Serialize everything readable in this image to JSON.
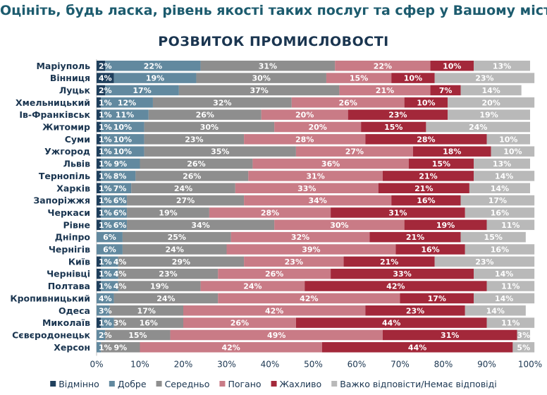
{
  "chart_data": {
    "type": "bar",
    "orientation": "horizontal",
    "stacked": true,
    "title": "Оцініть, будь ласка, рівень якості таких послуг та сфер у Вашому місті",
    "subtitle": "РОЗВИТОК ПРОМИСЛОВОСТІ",
    "xlabel": "",
    "ylabel": "",
    "xlim": [
      0,
      100
    ],
    "x_ticks": [
      "0%",
      "10%",
      "20%",
      "30%",
      "40%",
      "50%",
      "60%",
      "70%",
      "80%",
      "90%",
      "100%"
    ],
    "legend_position": "bottom",
    "categories": [
      "Маріуполь",
      "Вінниця",
      "Луцьк",
      "Хмельницький",
      "Ів-Франківськ",
      "Житомир",
      "Суми",
      "Ужгород",
      "Львів",
      "Тернопіль",
      "Харків",
      "Запоріжжя",
      "Черкаси",
      "Рівне",
      "Дніпро",
      "Чернігів",
      "Київ",
      "Чернівці",
      "Полтава",
      "Кропивницький",
      "Одеса",
      "Миколаїв",
      "Сєвєродонецьк",
      "Херсон"
    ],
    "series": [
      {
        "name": "Відмінно",
        "color": "#1f3f5c",
        "values": [
          2,
          4,
          2,
          1,
          1,
          1,
          1,
          1,
          1,
          1,
          1,
          1,
          1,
          1,
          0,
          0,
          1,
          1,
          1,
          0,
          0,
          1,
          0,
          0
        ]
      },
      {
        "name": "Добре",
        "color": "#62899f",
        "values": [
          22,
          19,
          17,
          12,
          11,
          10,
          10,
          10,
          9,
          8,
          7,
          6,
          6,
          6,
          6,
          6,
          4,
          4,
          4,
          4,
          3,
          3,
          2,
          1
        ]
      },
      {
        "name": "Середньо",
        "color": "#8e8e8e",
        "values": [
          31,
          30,
          37,
          32,
          26,
          30,
          23,
          35,
          26,
          26,
          24,
          27,
          19,
          34,
          25,
          24,
          29,
          23,
          19,
          24,
          17,
          16,
          15,
          9
        ]
      },
      {
        "name": "Погано",
        "color": "#c97b86",
        "values": [
          22,
          15,
          21,
          26,
          20,
          20,
          28,
          27,
          36,
          31,
          33,
          34,
          28,
          30,
          32,
          39,
          23,
          26,
          24,
          42,
          42,
          26,
          49,
          42
        ]
      },
      {
        "name": "Жахливо",
        "color": "#a3283a",
        "values": [
          10,
          10,
          7,
          10,
          23,
          15,
          28,
          18,
          15,
          21,
          21,
          16,
          31,
          19,
          21,
          16,
          21,
          33,
          42,
          17,
          23,
          44,
          31,
          44
        ]
      },
      {
        "name": "Важко відповісти/Немає відповіді",
        "color": "#b9b9b9",
        "values": [
          13,
          23,
          14,
          20,
          19,
          24,
          10,
          10,
          13,
          14,
          14,
          17,
          16,
          11,
          15,
          16,
          23,
          14,
          11,
          14,
          14,
          11,
          3,
          5
        ]
      }
    ]
  }
}
